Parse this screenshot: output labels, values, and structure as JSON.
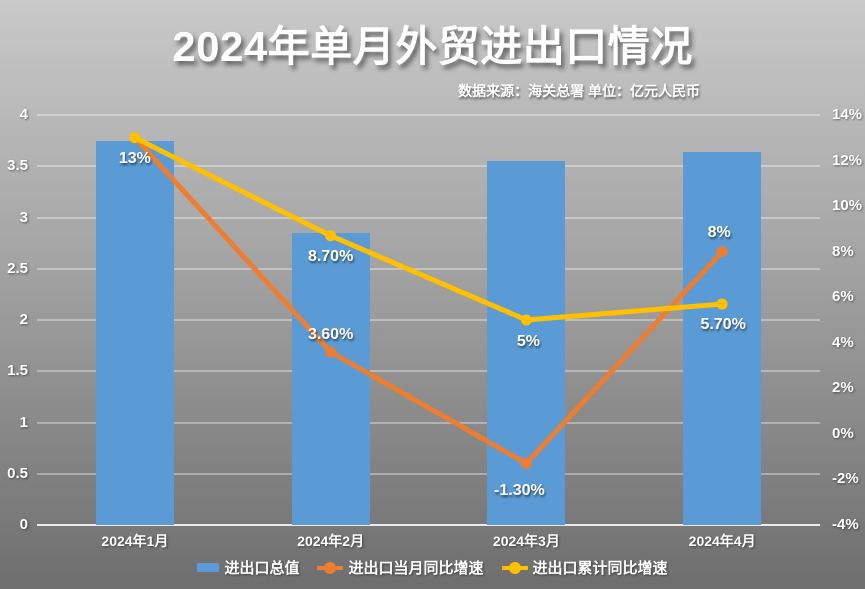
{
  "title": "2024年单月外贸进出口情况",
  "subtitle": "数据来源：海关总署 单位：亿元人民币",
  "colors": {
    "bar": "#5B9BD5",
    "monthly_line": "#ED7D31",
    "cumulative_line": "#FFC000",
    "background_top": "#c9c9c9",
    "background_bottom": "#6e6e6e",
    "text": "#ffffff"
  },
  "chart_data": {
    "type": "bar",
    "subtype": "combo-bar-line-dual-axis",
    "title": "2024年单月外贸进出口情况",
    "source_note": "数据来源：海关总署 单位：亿元人民币",
    "categories": [
      "2024年1月",
      "2024年2月",
      "2024年3月",
      "2024年4月"
    ],
    "series": [
      {
        "name": "进出口总值",
        "kind": "bar",
        "axis": "left",
        "color": "#5B9BD5",
        "values": [
          3.75,
          2.85,
          3.55,
          3.64
        ],
        "point_labels": [
          "",
          "",
          "",
          ""
        ]
      },
      {
        "name": "进出口当月同比增速",
        "kind": "line",
        "axis": "right",
        "color": "#ED7D31",
        "values": [
          13,
          3.6,
          -1.3,
          8
        ],
        "point_labels": [
          "",
          "3.60%",
          "-1.30%",
          "8%"
        ]
      },
      {
        "name": "进出口累计同比增速",
        "kind": "line",
        "axis": "right",
        "color": "#FFC000",
        "values": [
          13,
          8.7,
          5,
          5.7
        ],
        "point_labels": [
          "13%",
          "8.70%",
          "5%",
          "5.70%"
        ]
      }
    ],
    "left_axis": {
      "min": 0,
      "max": 4,
      "tick_labels": [
        "4",
        "3.5",
        "3",
        "2.5",
        "2",
        "1.5",
        "1",
        "0.5",
        "0"
      ]
    },
    "right_axis": {
      "min": -4,
      "max": 14,
      "tick_labels": [
        "14%",
        "12%",
        "10%",
        "8%",
        "6%",
        "4%",
        "2%",
        "0%",
        "-2%",
        "-4%"
      ]
    },
    "grid": true,
    "legend_position": "bottom",
    "label_offsets": [
      null,
      [
        [
          0,
          0
        ],
        [
          0,
          -17
        ],
        [
          -7,
          27
        ],
        [
          -3,
          -19
        ]
      ],
      [
        [
          0,
          21
        ],
        [
          0,
          21
        ],
        [
          2,
          22
        ],
        [
          1,
          21
        ]
      ]
    ]
  }
}
